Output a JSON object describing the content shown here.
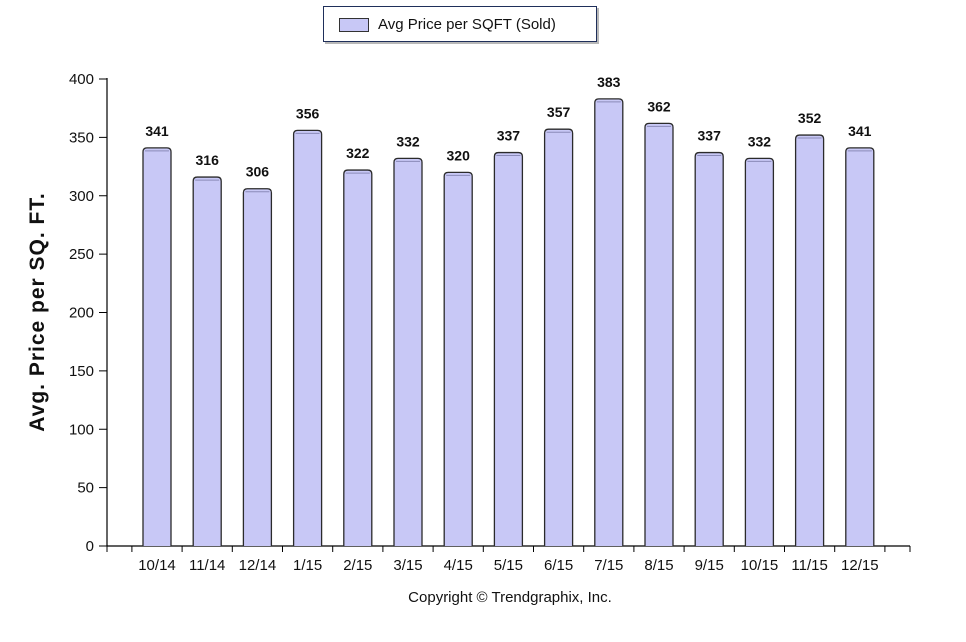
{
  "legend": {
    "label": "Avg Price per SQFT (Sold)"
  },
  "copyright": "Copyright © Trendgraphix, Inc.",
  "colors": {
    "bar_fill": "#c8c8f6",
    "bar_edge": "#2b2b2b",
    "axis": "#000000"
  },
  "chart_data": {
    "type": "bar",
    "title": "",
    "xlabel": "",
    "ylabel": "Avg. Price per SQ. FT.",
    "ylim": [
      0,
      400
    ],
    "yticks": [
      0,
      50,
      100,
      150,
      200,
      250,
      300,
      350,
      400
    ],
    "grid": false,
    "legend_position": "top-center",
    "categories": [
      "10/14",
      "11/14",
      "12/14",
      "1/15",
      "2/15",
      "3/15",
      "4/15",
      "5/15",
      "6/15",
      "7/15",
      "8/15",
      "9/15",
      "10/15",
      "11/15",
      "12/15"
    ],
    "series": [
      {
        "name": "Avg Price per SQFT (Sold)",
        "values": [
          341,
          316,
          306,
          356,
          322,
          332,
          320,
          337,
          357,
          383,
          362,
          337,
          332,
          352,
          341
        ]
      }
    ]
  }
}
